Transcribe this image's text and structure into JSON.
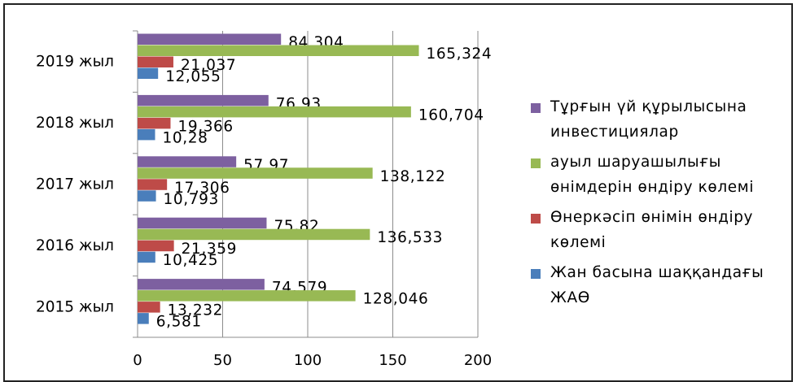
{
  "chart_data": {
    "type": "bar",
    "orientation": "horizontal",
    "categories": [
      "2015 жыл",
      "2016 жыл",
      "2017 жыл",
      "2018 жыл",
      "2019 жыл"
    ],
    "series": [
      {
        "name": "Жан басына шаққандағы ЖАӨ",
        "color": "#4a7ebb",
        "values": [
          6.581,
          10.425,
          10.793,
          10.28,
          12.055
        ],
        "labels": [
          "6,581",
          "10,425",
          "10,793",
          "10,28",
          "12,055"
        ]
      },
      {
        "name": "Өнеркәсіп өнімін өндіру көлемі",
        "color": "#be4b48",
        "values": [
          13.232,
          21.359,
          17.306,
          19.366,
          21.037
        ],
        "labels": [
          "13,232",
          "21,359",
          "17,306",
          "19,366",
          "21,037"
        ]
      },
      {
        "name": "ауыл шаруашылығы өнімдерін өндіру көлемі",
        "color": "#98b954",
        "values": [
          128.046,
          136.533,
          138.122,
          160.704,
          165.324
        ],
        "labels": [
          "128,046",
          "136,533",
          "138,122",
          "160,704",
          "165,324"
        ]
      },
      {
        "name": "Тұрғын үй құрылысына инвестициялар",
        "color": "#7d60a0",
        "values": [
          74.579,
          75.82,
          57.97,
          76.93,
          84.304
        ],
        "labels": [
          "74,579",
          "75,82",
          "57,97",
          "76,93",
          "84,304"
        ]
      }
    ],
    "xticks": [
      "0",
      "50",
      "100",
      "150",
      "200"
    ],
    "xlim": [
      0,
      200
    ],
    "grid": true,
    "legend_position": "right"
  },
  "legend": {
    "order": [
      3,
      2,
      1,
      0
    ]
  }
}
